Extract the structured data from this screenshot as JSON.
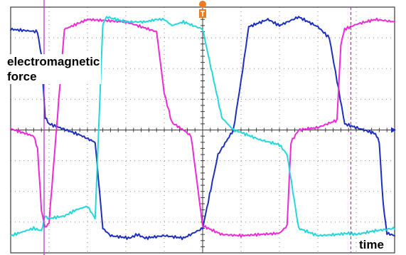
{
  "chart_data": {
    "type": "line",
    "title": "",
    "xlabel": "time",
    "ylabel": "electromagnetic force",
    "grid": true,
    "xlim": [
      0,
      1
    ],
    "ylim": [
      -1,
      1
    ],
    "annotations": [
      "electromagnetic\nforce",
      "time"
    ],
    "colors": {
      "series_a": "#1c2fbf",
      "series_b": "#ee2ad6",
      "series_c": "#25d6da",
      "marker": "#b03cc8",
      "trigger": "#f07a1f",
      "grid": "#8a8a8a",
      "frame": "#3a3a3a"
    },
    "series": [
      {
        "x": [
          0,
          0.07,
          0.08,
          0.09,
          0.1,
          0.18,
          0.22,
          0.24,
          0.26,
          0.31,
          0.33,
          0.35,
          0.4,
          0.45,
          0.5,
          0.54,
          0.58,
          0.6,
          0.62,
          0.67,
          0.7,
          0.75,
          0.8,
          0.83,
          0.85,
          0.87,
          0.92,
          0.95,
          0.96,
          0.97,
          0.98,
          1.0
        ],
        "values": [
          0.82,
          0.8,
          0.6,
          0.1,
          0.05,
          -0.04,
          -0.1,
          -0.8,
          -0.86,
          -0.88,
          -0.85,
          -0.88,
          -0.86,
          -0.88,
          -0.8,
          -0.2,
          0.0,
          0.4,
          0.84,
          0.9,
          0.85,
          0.92,
          0.84,
          0.75,
          0.4,
          0.05,
          0.0,
          -0.03,
          -0.1,
          -0.6,
          -0.84,
          -0.86
        ]
      },
      {
        "x": [
          0,
          0.06,
          0.07,
          0.08,
          0.09,
          0.1,
          0.14,
          0.2,
          0.3,
          0.38,
          0.4,
          0.42,
          0.45,
          0.47,
          0.5,
          0.55,
          0.6,
          0.7,
          0.72,
          0.73,
          0.75,
          0.8,
          0.85,
          0.86,
          0.87,
          0.9,
          0.95,
          1.0
        ],
        "values": [
          0.01,
          -0.05,
          -0.15,
          -0.65,
          -0.8,
          -0.75,
          0.82,
          0.9,
          0.88,
          0.8,
          0.3,
          0.06,
          0.0,
          -0.05,
          -0.78,
          -0.85,
          -0.86,
          -0.84,
          -0.78,
          -0.1,
          0.0,
          0.02,
          0.08,
          0.7,
          0.82,
          0.86,
          0.9,
          0.88
        ]
      },
      {
        "x": [
          0,
          0.06,
          0.08,
          0.09,
          0.1,
          0.14,
          0.17,
          0.2,
          0.22,
          0.24,
          0.25,
          0.3,
          0.35,
          0.38,
          0.4,
          0.42,
          0.45,
          0.5,
          0.55,
          0.58,
          0.6,
          0.65,
          0.7,
          0.72,
          0.75,
          0.8,
          0.85,
          0.88,
          0.9,
          0.95,
          1.0
        ],
        "values": [
          -0.86,
          -0.8,
          -0.82,
          -0.7,
          -0.72,
          -0.7,
          -0.65,
          -0.62,
          -0.72,
          0.86,
          0.92,
          0.88,
          0.88,
          0.9,
          0.9,
          0.85,
          0.88,
          0.82,
          0.1,
          0.0,
          -0.02,
          -0.08,
          -0.12,
          -0.2,
          -0.8,
          -0.86,
          -0.85,
          -0.84,
          -0.85,
          -0.82,
          -0.8
        ]
      }
    ]
  }
}
